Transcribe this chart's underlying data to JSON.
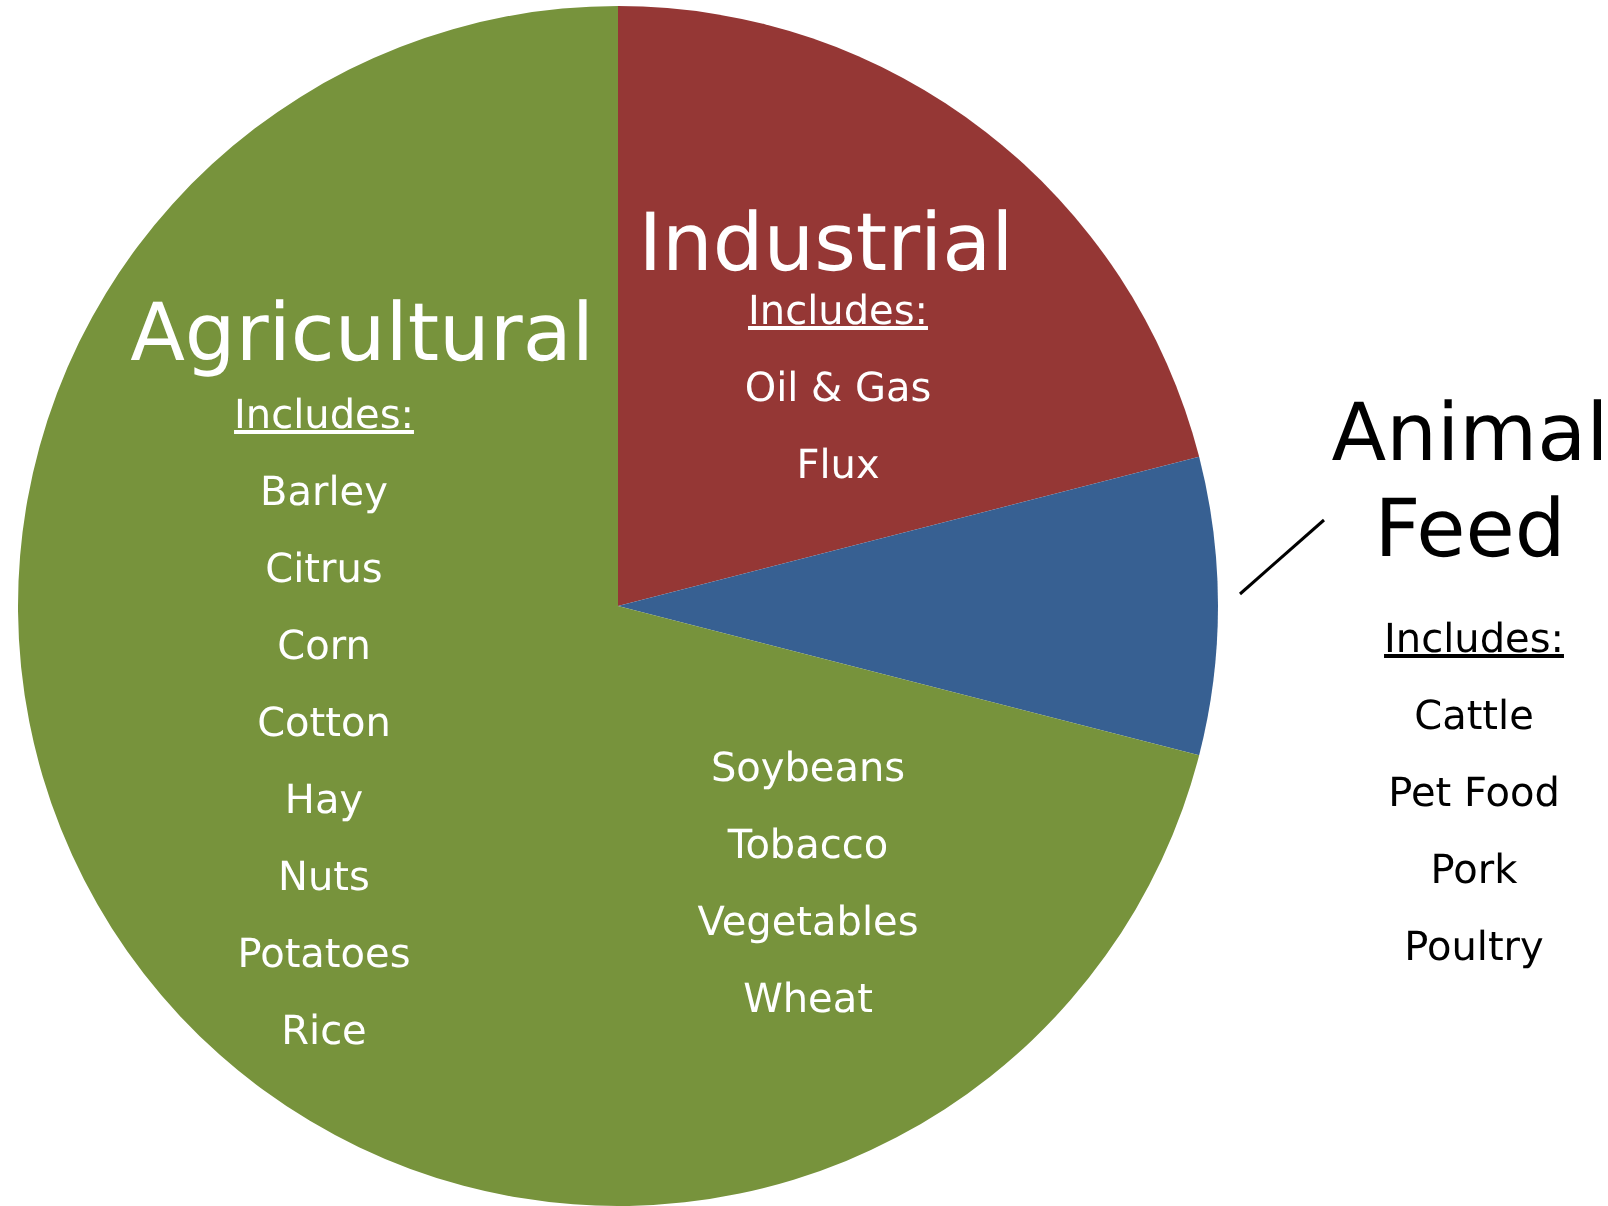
{
  "chart_data": {
    "type": "pie",
    "categories": [
      "Industrial",
      "Animal Feed",
      "Agricultural"
    ],
    "values": [
      21,
      8,
      71
    ],
    "colors": [
      "#953735",
      "#376092",
      "#77933c"
    ],
    "annotations": [
      "Includes:\nOil & Gas\nFlux",
      "Includes:\nCattle\nPet Food\nPork\nPoultry",
      "Includes:\nBarley\nCitrus\nCorn\nCotton\nHay\nNuts\nPotatoes\nRice\nSoybeans\nTobacco\nVegetables\nWheat"
    ]
  }
}
